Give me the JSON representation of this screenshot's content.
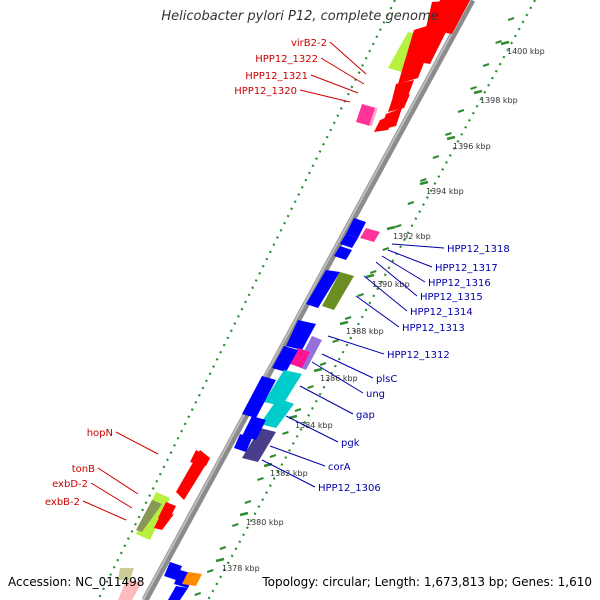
{
  "title": "Helicobacter pylori P12, complete genome",
  "accession": "Accession: NC_011498",
  "summary": "Topology: circular; Length: 1,673,813 bp; Genes: 1,610",
  "colors": {
    "backbone": "#8c8c8c",
    "forward_gene": "#ff0000",
    "reverse_gene": "#0000ff",
    "dots": "#2e8b2e",
    "label_forward": "#cc0000",
    "label_reverse": "#0000aa"
  },
  "ticks": [
    {
      "label": "1400 kbp"
    },
    {
      "label": "1398 kbp"
    },
    {
      "label": "1396 kbp"
    },
    {
      "label": "1394 kbp"
    },
    {
      "label": "1392 kbp"
    },
    {
      "label": "1390 kbp"
    },
    {
      "label": "1388 kbp"
    },
    {
      "label": "1386 kbp"
    },
    {
      "label": "1384 kbp"
    },
    {
      "label": "1382 kbp"
    },
    {
      "label": "1380 kbp"
    },
    {
      "label": "1378 kbp"
    }
  ],
  "left_labels": [
    {
      "text": "virB2-2"
    },
    {
      "text": "HPP12_1322"
    },
    {
      "text": "HPP12_1321"
    },
    {
      "text": "HPP12_1320"
    },
    {
      "text": "hopN"
    },
    {
      "text": "tonB"
    },
    {
      "text": "exbD-2"
    },
    {
      "text": "exbB-2"
    }
  ],
  "right_labels": [
    {
      "text": "HPP12_1318"
    },
    {
      "text": "HPP12_1317"
    },
    {
      "text": "HPP12_1316"
    },
    {
      "text": "HPP12_1315"
    },
    {
      "text": "HPP12_1314"
    },
    {
      "text": "HPP12_1313"
    },
    {
      "text": "HPP12_1312"
    },
    {
      "text": "plsC"
    },
    {
      "text": "ung"
    },
    {
      "text": "gap"
    },
    {
      "text": "pgk"
    },
    {
      "text": "corA"
    },
    {
      "text": "HPP12_1306"
    }
  ]
}
